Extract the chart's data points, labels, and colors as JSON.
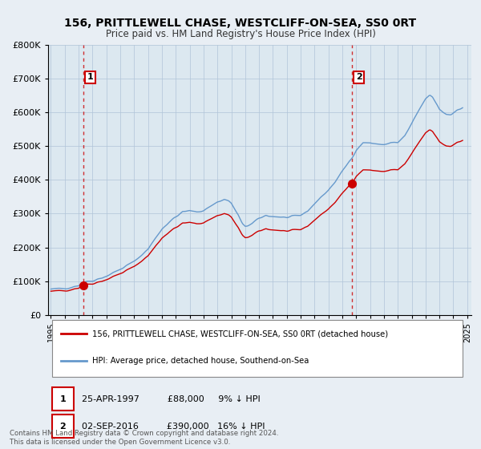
{
  "title": "156, PRITTLEWELL CHASE, WESTCLIFF-ON-SEA, SS0 0RT",
  "subtitle": "Price paid vs. HM Land Registry's House Price Index (HPI)",
  "legend_line1": "156, PRITTLEWELL CHASE, WESTCLIFF-ON-SEA, SS0 0RT (detached house)",
  "legend_line2": "HPI: Average price, detached house, Southend-on-Sea",
  "annotation1_text": "25-APR-1997          £88,000     9% ↓ HPI",
  "annotation2_text": "02-SEP-2016          £390,000   16% ↓ HPI",
  "footer": "Contains HM Land Registry data © Crown copyright and database right 2024.\nThis data is licensed under the Open Government Licence v3.0.",
  "hpi_color": "#6699cc",
  "price_color": "#cc0000",
  "vline_color": "#cc0000",
  "background_color": "#e8eef4",
  "plot_bg_color": "#dce8f0",
  "ylim": [
    0,
    800000
  ],
  "yticks": [
    0,
    100000,
    200000,
    300000,
    400000,
    500000,
    600000,
    700000,
    800000
  ],
  "sale1_x": 1997.32,
  "sale1_y": 88000,
  "sale2_x": 2016.67,
  "sale2_y": 390000,
  "xlim": [
    1994.8,
    2025.3
  ]
}
